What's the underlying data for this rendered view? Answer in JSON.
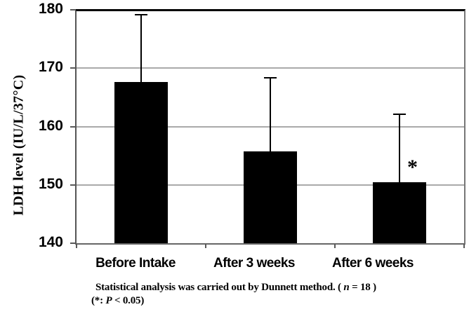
{
  "chart_data": {
    "type": "bar",
    "title": "",
    "ylabel": "LDH level (IU/L/37°C)",
    "xlabel": "",
    "categories": [
      "Before Intake",
      "After 3 weeks",
      "After 6 weeks"
    ],
    "values": [
      167.6,
      155.7,
      150.5
    ],
    "errors_upper": [
      11.6,
      12.6,
      11.6
    ],
    "error_bar_tops": [
      179.2,
      168.3,
      162.1
    ],
    "ylim": [
      140,
      180
    ],
    "yticks": [
      140,
      150,
      160,
      170,
      180
    ],
    "grid": "horizontal",
    "legend": "none",
    "bar_color": "#000000",
    "significance": {
      "marker": "*",
      "category": "After 6 weeks"
    }
  },
  "caption": {
    "line1_pre": "Statistical analysis was carried out by Dunnett method. ( ",
    "line1_var": "n",
    "line1_post": " = 18 )",
    "line2_pre": "(*: ",
    "line2_var": "P",
    "line2_post": " < 0.05)"
  },
  "colors": {
    "bar": "#000000",
    "gridline": "#aaaaaa",
    "axis": "#595959",
    "frame_top": "#000000",
    "background": "#ffffff",
    "text": "#000000"
  }
}
